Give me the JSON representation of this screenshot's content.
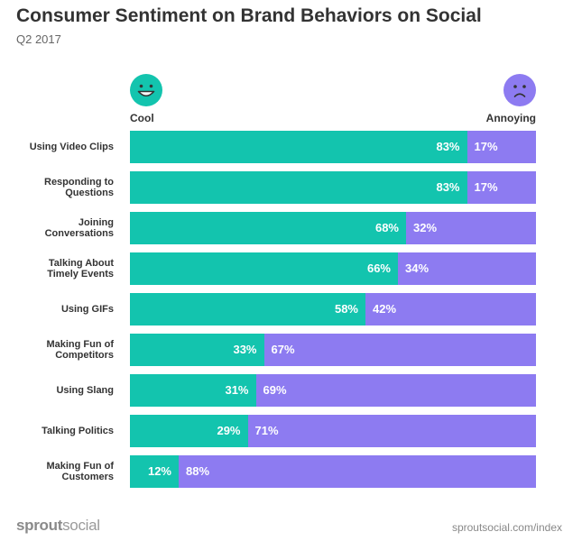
{
  "title": "Consumer Sentiment on Brand Behaviors on Social",
  "subtitle": "Q2 2017",
  "legend": {
    "cool_label": "Cool",
    "annoying_label": "Annoying",
    "cool_icon": "happy-face-icon",
    "annoying_icon": "frown-face-icon"
  },
  "colors": {
    "cool": "#13c4ae",
    "annoying": "#8d7bf1"
  },
  "chart_data": {
    "type": "bar",
    "orientation": "horizontal",
    "stacked": true,
    "categories": [
      "Using Video Clips",
      "Responding to\nQuestions",
      "Joining\nConversations",
      "Talking About\nTimely Events",
      "Using GIFs",
      "Making Fun of\nCompetitors",
      "Using Slang",
      "Talking Politics",
      "Making Fun of\nCustomers"
    ],
    "series": [
      {
        "name": "Cool",
        "values": [
          83,
          83,
          68,
          66,
          58,
          33,
          31,
          29,
          12
        ]
      },
      {
        "name": "Annoying",
        "values": [
          17,
          17,
          32,
          34,
          42,
          67,
          69,
          71,
          88
        ]
      }
    ],
    "unit": "%",
    "xlim": [
      0,
      100
    ],
    "title": "Consumer Sentiment on Brand Behaviors on Social",
    "subtitle": "Q2 2017"
  },
  "footer": {
    "logo_prefix": "sprout",
    "logo_suffix": "social",
    "url": "sproutsocial.com/index"
  }
}
